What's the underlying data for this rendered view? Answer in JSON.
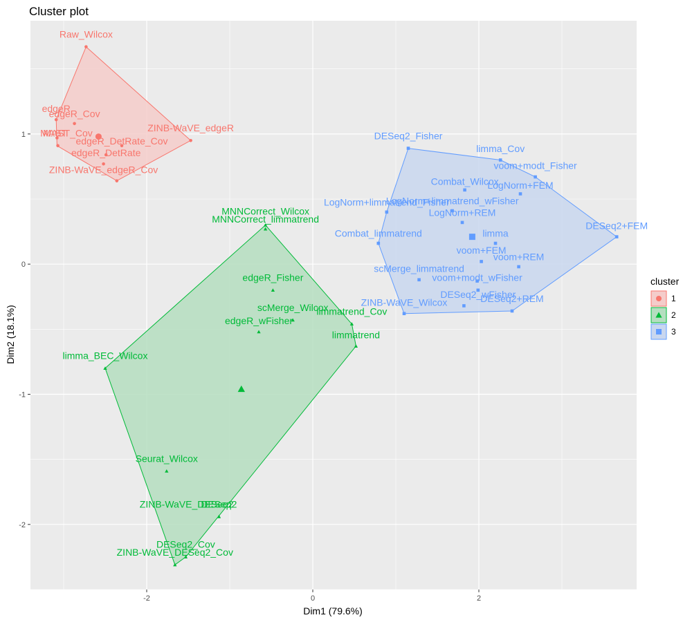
{
  "chart_data": {
    "type": "scatter",
    "title": "Cluster plot",
    "xlabel": "Dim1 (79.6%)",
    "ylabel": "Dim2 (18.1%)",
    "xlim": [
      -3.4,
      3.9
    ],
    "ylim": [
      -2.5,
      1.87
    ],
    "x_ticks": [
      -2,
      0,
      2
    ],
    "y_ticks": [
      -2,
      -1,
      0,
      1
    ],
    "grid": true,
    "legend": {
      "title": "cluster",
      "position": "right",
      "entries": [
        "1",
        "2",
        "3"
      ]
    },
    "clusters": [
      {
        "name": "1",
        "color": "#F8766D",
        "fill": "#F4CCCA",
        "shape": "circle",
        "center": [
          -2.58,
          0.98
        ],
        "hull": [
          [
            -2.73,
            1.67
          ],
          [
            -1.47,
            0.95
          ],
          [
            -2.36,
            0.64
          ],
          [
            -3.08,
            0.91
          ],
          [
            -3.09,
            1.11
          ]
        ],
        "points": [
          {
            "label": "Raw_Wilcox",
            "x": -2.73,
            "y": 1.67,
            "lx": -2.73,
            "ly": 1.74
          },
          {
            "label": "edgeR",
            "x": -3.09,
            "y": 1.11,
            "lx": -3.09,
            "ly": 1.17
          },
          {
            "label": "edgeR_Cov",
            "x": -2.87,
            "y": 1.08,
            "lx": -2.87,
            "ly": 1.13
          },
          {
            "label": "MAST",
            "x": -3.08,
            "y": 0.97,
            "lx": -3.12,
            "ly": 0.98
          },
          {
            "label": "MAST_Cov",
            "x": -3.07,
            "y": 0.91,
            "lx": -2.95,
            "ly": 0.98
          },
          {
            "label": "edgeR_DetRate_Cov",
            "x": -2.3,
            "y": 0.91,
            "lx": -2.3,
            "ly": 0.92
          },
          {
            "label": "edgeR_DetRate",
            "x": -2.49,
            "y": 0.84,
            "lx": -2.49,
            "ly": 0.83
          },
          {
            "label": "ZINB-WaVE_edgeR",
            "x": -1.47,
            "y": 0.95,
            "lx": -1.47,
            "ly": 1.02
          },
          {
            "label": "ZINB-WaVE_edgeR_Cov",
            "x": -2.52,
            "y": 0.77,
            "lx": -2.52,
            "ly": 0.7
          },
          {
            "label": "",
            "x": -2.36,
            "y": 0.64,
            "lx": -2.36,
            "ly": 0.64
          }
        ]
      },
      {
        "name": "2",
        "color": "#00BA38",
        "fill": "#B5DEC0",
        "shape": "triangle",
        "center": [
          -0.86,
          -0.96
        ],
        "hull": [
          [
            -0.57,
            0.3
          ],
          [
            0.47,
            -0.46
          ],
          [
            0.52,
            -0.63
          ],
          [
            -1.53,
            -2.25
          ],
          [
            -1.66,
            -2.31
          ],
          [
            -2.5,
            -0.8
          ]
        ],
        "points": [
          {
            "label": "MNNCorrect_Wilcox",
            "x": -0.57,
            "y": 0.3,
            "lx": -0.57,
            "ly": 0.38
          },
          {
            "label": "MNNCorrect_limmatrend",
            "x": -0.57,
            "y": 0.27,
            "lx": -0.57,
            "ly": 0.32
          },
          {
            "label": "edgeR_Fisher",
            "x": -0.48,
            "y": -0.2,
            "lx": -0.48,
            "ly": -0.13
          },
          {
            "label": "scMerge_Wilcox",
            "x": -0.24,
            "y": -0.43,
            "lx": -0.24,
            "ly": -0.36
          },
          {
            "label": "limmatrend_Cov",
            "x": 0.47,
            "y": -0.46,
            "lx": 0.47,
            "ly": -0.39
          },
          {
            "label": "edgeR_wFisher",
            "x": -0.65,
            "y": -0.52,
            "lx": -0.65,
            "ly": -0.46
          },
          {
            "label": "limmatrend",
            "x": 0.52,
            "y": -0.63,
            "lx": 0.52,
            "ly": -0.57
          },
          {
            "label": "limma_BEC_Wilcox",
            "x": -2.5,
            "y": -0.8,
            "lx": -2.5,
            "ly": -0.73
          },
          {
            "label": "Seurat_Wilcox",
            "x": -1.76,
            "y": -1.59,
            "lx": -1.76,
            "ly": -1.52
          },
          {
            "label": "ZINB-WaVE_DESeq2",
            "x": -1.13,
            "y": -1.94,
            "lx": -1.52,
            "ly": -1.87
          },
          {
            "label": "DESeq2",
            "x": -1.13,
            "y": -1.94,
            "lx": -1.13,
            "ly": -1.87
          },
          {
            "label": "DESeq2_Cov",
            "x": -1.53,
            "y": -2.25,
            "lx": -1.53,
            "ly": -2.18
          },
          {
            "label": "ZINB-WaVE_DESeq2_Cov",
            "x": -1.66,
            "y": -2.31,
            "lx": -1.66,
            "ly": -2.24
          }
        ]
      },
      {
        "name": "3",
        "color": "#619CFF",
        "fill": "#C9D7EF",
        "shape": "square",
        "center": [
          1.92,
          0.21
        ],
        "hull": [
          [
            1.15,
            0.89
          ],
          [
            2.26,
            0.8
          ],
          [
            2.68,
            0.67
          ],
          [
            3.66,
            0.21
          ],
          [
            2.4,
            -0.36
          ],
          [
            1.1,
            -0.38
          ],
          [
            0.79,
            0.16
          ],
          [
            0.89,
            0.4
          ]
        ],
        "points": [
          {
            "label": "DESeq2_Fisher",
            "x": 1.15,
            "y": 0.89,
            "lx": 1.15,
            "ly": 0.96
          },
          {
            "label": "limma_Cov",
            "x": 2.26,
            "y": 0.8,
            "lx": 2.26,
            "ly": 0.86
          },
          {
            "label": "voom+modt_Fisher",
            "x": 2.68,
            "y": 0.67,
            "lx": 2.68,
            "ly": 0.73
          },
          {
            "label": "Combat_Wilcox",
            "x": 1.83,
            "y": 0.57,
            "lx": 1.83,
            "ly": 0.61
          },
          {
            "label": "LogNorm+FEM",
            "x": 2.5,
            "y": 0.54,
            "lx": 2.5,
            "ly": 0.58
          },
          {
            "label": "LogNorm+limmatrend_Fisher",
            "x": 0.89,
            "y": 0.4,
            "lx": 0.89,
            "ly": 0.45
          },
          {
            "label": "LogNorm+limmatrend_wFisher",
            "x": 1.68,
            "y": 0.41,
            "lx": 1.68,
            "ly": 0.46
          },
          {
            "label": "LogNorm+REM",
            "x": 1.8,
            "y": 0.32,
            "lx": 1.8,
            "ly": 0.37
          },
          {
            "label": "DESeq2+FEM",
            "x": 3.66,
            "y": 0.21,
            "lx": 3.66,
            "ly": 0.27
          },
          {
            "label": "Combat_limmatrend",
            "x": 0.79,
            "y": 0.16,
            "lx": 0.79,
            "ly": 0.21
          },
          {
            "label": "limma",
            "x": 2.2,
            "y": 0.16,
            "lx": 2.2,
            "ly": 0.21
          },
          {
            "label": "voom+FEM",
            "x": 2.03,
            "y": 0.02,
            "lx": 2.03,
            "ly": 0.08
          },
          {
            "label": "voom+REM",
            "x": 2.48,
            "y": -0.02,
            "lx": 2.48,
            "ly": 0.03
          },
          {
            "label": "scMerge_limmatrend",
            "x": 1.28,
            "y": -0.12,
            "lx": 1.28,
            "ly": -0.06
          },
          {
            "label": "voom+modt_wFisher",
            "x": 1.98,
            "y": -0.13,
            "lx": 1.98,
            "ly": -0.13
          },
          {
            "label": "DESeq2_wFisher",
            "x": 1.99,
            "y": -0.2,
            "lx": 1.99,
            "ly": -0.26
          },
          {
            "label": "ZINB-WaVE_Wilcox",
            "x": 1.1,
            "y": -0.38,
            "lx": 1.1,
            "ly": -0.32
          },
          {
            "label": "DESeq2+REM",
            "x": 2.4,
            "y": -0.36,
            "lx": 2.4,
            "ly": -0.29
          },
          {
            "label": "",
            "x": 1.82,
            "y": -0.32,
            "lx": 1.82,
            "ly": -0.32
          }
        ]
      }
    ]
  }
}
